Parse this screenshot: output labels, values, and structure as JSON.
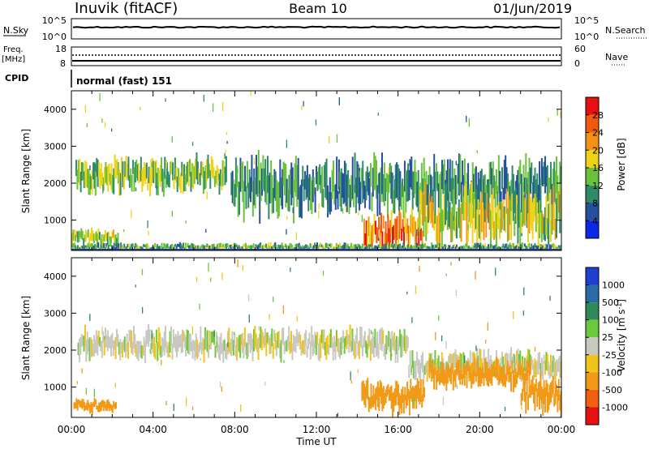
{
  "header": {
    "station": "Inuvik (fitACF)",
    "beam": "Beam 10",
    "date": "01/Jun/2019"
  },
  "noise_panel": {
    "left_label": "N.Sky",
    "left_ticks": [
      "10^5",
      "10^0"
    ],
    "right_ticks": [
      "10^5",
      "10^0"
    ],
    "right_label": "N.Search"
  },
  "freq_panel": {
    "left_label_line1": "Freq.",
    "left_label_line2": "[MHz]",
    "left_ticks": [
      "18",
      "8"
    ],
    "right_ticks": [
      "60",
      "0"
    ],
    "right_label": "Nave"
  },
  "cpid": {
    "label": "CPID",
    "value": "normal (fast) 151"
  },
  "axes": {
    "ylabel": "Slant Range [km]",
    "xlabel": "Time UT",
    "yticks": [
      "1000",
      "2000",
      "3000",
      "4000"
    ],
    "xticks": [
      "00:00",
      "04:00",
      "08:00",
      "12:00",
      "16:00",
      "20:00",
      "00:00"
    ]
  },
  "power_scale": {
    "label": "Power [dB]",
    "ticks": [
      "4",
      "8",
      "12",
      "16",
      "20",
      "24",
      "28"
    ],
    "colors": [
      "#0a28e6",
      "#24509e",
      "#2f8a68",
      "#6ac23a",
      "#f0d21a",
      "#f39216",
      "#f05a10",
      "#e61010"
    ]
  },
  "velocity_scale": {
    "label": "Velocity [m s",
    "label_sup": "-1",
    "label_end": "]",
    "ticks": [
      "1000",
      "500",
      "100",
      "25",
      "-25",
      "-100",
      "-500",
      "-1000"
    ],
    "colors": [
      "#1f3fd0",
      "#2a6aa8",
      "#2e8a5a",
      "#6cc83c",
      "#c8c8c0",
      "#f0c418",
      "#f29a18",
      "#f06010",
      "#e61010"
    ]
  },
  "chart_data": [
    {
      "type": "line",
      "title": "N.Sky / N.Search",
      "x_range_hours": [
        0,
        24
      ],
      "yscale": "log",
      "ylim": [
        1,
        100000
      ]
    },
    {
      "type": "line",
      "title": "Freq. [MHz] / Nave",
      "x_range_hours": [
        0,
        24
      ],
      "ylim": [
        8,
        18
      ],
      "ylim_right": [
        0,
        60
      ]
    },
    {
      "type": "heatmap",
      "title": "Power [dB]",
      "xlabel": "Time UT",
      "ylabel": "Slant Range [km]",
      "xlim_hours": [
        0,
        24
      ],
      "ylim_km": [
        180,
        4500
      ],
      "clim": [
        0,
        30
      ],
      "features": [
        {
          "t0": 0.2,
          "t1": 7.6,
          "r0": 1850,
          "r1": 2600,
          "level": 14
        },
        {
          "t0": 7.8,
          "t1": 24.0,
          "r0": 1300,
          "r1": 2500,
          "level": 10
        },
        {
          "t0": 0.0,
          "t1": 2.3,
          "r0": 350,
          "r1": 700,
          "level": 16
        },
        {
          "t0": 14.3,
          "t1": 17.2,
          "r0": 300,
          "r1": 1100,
          "level": 24
        },
        {
          "t0": 17.0,
          "t1": 24.0,
          "r0": 500,
          "r1": 1700,
          "level": 16
        },
        {
          "t0": 0.0,
          "t1": 24.0,
          "r0": 180,
          "r1": 350,
          "level": 12
        }
      ]
    },
    {
      "type": "heatmap",
      "title": "Velocity [m s-1]",
      "xlabel": "Time UT",
      "ylabel": "Slant Range [km]",
      "xlim_hours": [
        0,
        24
      ],
      "ylim_km": [
        180,
        4500
      ],
      "clim": [
        -1000,
        1000
      ],
      "features": [
        {
          "t0": 0.3,
          "t1": 16.5,
          "r0": 1850,
          "r1": 2500,
          "level": 0
        },
        {
          "t0": 16.5,
          "t1": 24.0,
          "r0": 1300,
          "r1": 1900,
          "level": 0
        },
        {
          "t0": 0.1,
          "t1": 2.2,
          "r0": 350,
          "r1": 650,
          "level": -150
        },
        {
          "t0": 14.2,
          "t1": 17.3,
          "r0": 400,
          "r1": 1100,
          "level": -150
        },
        {
          "t0": 17.5,
          "t1": 22.5,
          "r0": 1050,
          "r1": 1650,
          "level": -300
        },
        {
          "t0": 22.0,
          "t1": 24.0,
          "r0": 400,
          "r1": 1200,
          "level": -250
        }
      ]
    }
  ]
}
